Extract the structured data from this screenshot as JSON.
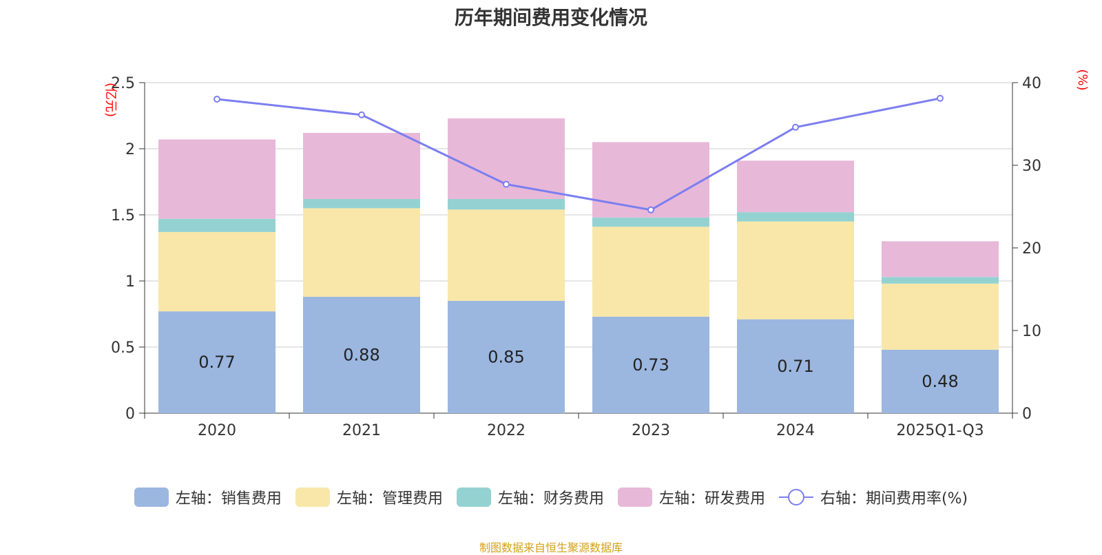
{
  "title": "历年期间费用变化情况",
  "footer": "制图数据来自恒生聚源数据库",
  "colors": {
    "sales": "#9bb7e0",
    "admin": "#f8e7a8",
    "finance": "#94d2d2",
    "rnd": "#e8b8d8",
    "rate": "#7b7ef0",
    "axis_unit": "#ff0000",
    "footer": "#d4a017"
  },
  "chart_data": {
    "type": "bar",
    "stacked": true,
    "title": "历年期间费用变化情况",
    "categories": [
      "2020",
      "2021",
      "2022",
      "2023",
      "2024",
      "2025Q1-Q3"
    ],
    "y_left": {
      "unit": "(亿元)",
      "ylim": [
        0,
        2.5
      ],
      "ticks": [
        "0",
        "0.5",
        "1",
        "1.5",
        "2",
        "2.5"
      ]
    },
    "y_right": {
      "unit": "(%)",
      "ylim": [
        0,
        40
      ],
      "ticks": [
        "0",
        "10",
        "20",
        "30",
        "40"
      ]
    },
    "series": [
      {
        "name": "左轴：销售费用",
        "axis": "left",
        "key": "sales",
        "values": [
          0.77,
          0.88,
          0.85,
          0.73,
          0.71,
          0.48
        ],
        "labels": [
          "0.77",
          "0.88",
          "0.85",
          "0.73",
          "0.71",
          "0.48"
        ]
      },
      {
        "name": "左轴：管理费用",
        "axis": "left",
        "key": "admin",
        "values": [
          0.6,
          0.67,
          0.69,
          0.68,
          0.74,
          0.5
        ]
      },
      {
        "name": "左轴：财务费用",
        "axis": "left",
        "key": "finance",
        "values": [
          0.1,
          0.07,
          0.08,
          0.07,
          0.07,
          0.05
        ]
      },
      {
        "name": "左轴：研发费用",
        "axis": "left",
        "key": "rnd",
        "values": [
          0.6,
          0.5,
          0.61,
          0.57,
          0.39,
          0.27
        ]
      },
      {
        "name": "右轴：期间费用率(%)",
        "axis": "right",
        "key": "rate",
        "type": "line",
        "values": [
          38.0,
          36.1,
          27.7,
          24.6,
          34.6,
          38.1
        ]
      }
    ],
    "grid": true,
    "legend": "bottom"
  }
}
